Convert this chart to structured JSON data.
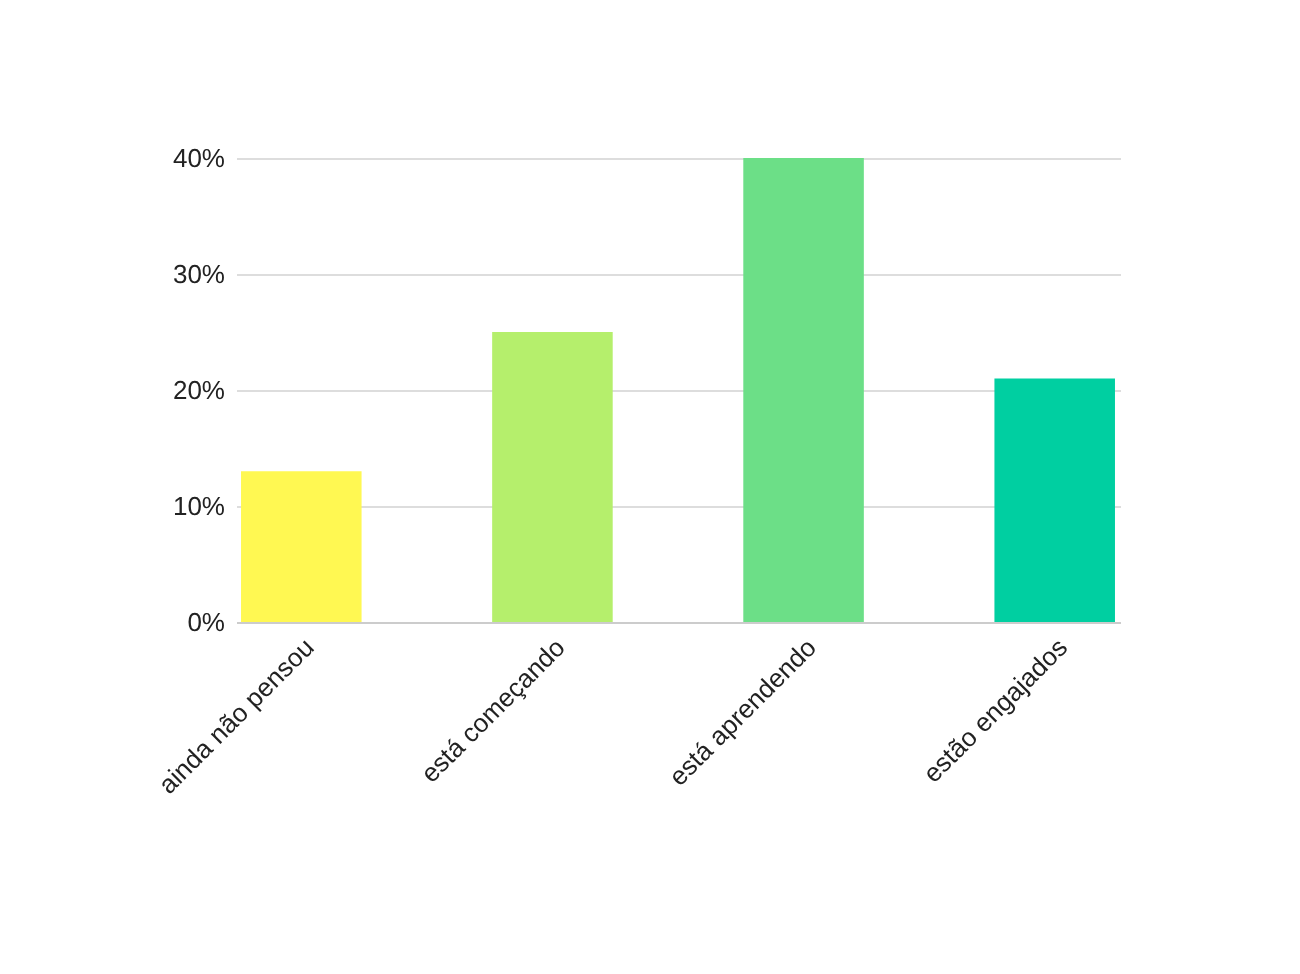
{
  "chart_data": {
    "type": "bar",
    "categories": [
      "ainda não pensou",
      "está começando",
      "está aprendendo",
      "estão engajados"
    ],
    "values": [
      13,
      25,
      40,
      21
    ],
    "colors": [
      "#fff852",
      "#b5ef6c",
      "#6cdf87",
      "#00cfa1"
    ],
    "ylim": [
      0,
      40
    ],
    "yticks": [
      {
        "value": 0,
        "label": "0%"
      },
      {
        "value": 10,
        "label": "10%"
      },
      {
        "value": 20,
        "label": "20%"
      },
      {
        "value": 30,
        "label": "30%"
      },
      {
        "value": 40,
        "label": "40%"
      }
    ],
    "grid": "y"
  }
}
